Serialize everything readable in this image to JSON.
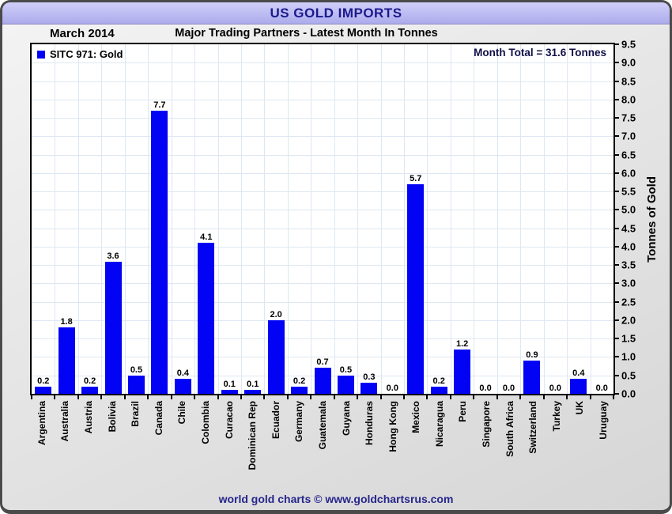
{
  "window": {
    "title": "US GOLD IMPORTS"
  },
  "header": {
    "date": "March 2014",
    "subtitle": "Major Trading Partners - Latest Month In Tonnes"
  },
  "legend": {
    "label": "SITC 971: Gold"
  },
  "annotations": {
    "month_total": "Month Total = 31.6 Tonnes"
  },
  "footer": {
    "text": "world gold charts © www.goldchartsrus.com"
  },
  "colors": {
    "bar_blue": "#0202f5",
    "title_navy": "#1a1a8c",
    "footer_navy": "#26268c",
    "grid_blue": "#dde8f3",
    "titlebar_lavender_top": "#d0cff9",
    "titlebar_lavender_bottom": "#acabec"
  },
  "chart_data": {
    "type": "bar",
    "title": "Major Trading Partners - Latest Month In Tonnes",
    "xlabel": "",
    "ylabel": "Tonnes of Gold",
    "ylim": [
      0,
      9.5
    ],
    "ytick_step": 0.5,
    "grid": true,
    "legend_position": "top-left",
    "value_labels": true,
    "value_label_format": "0.1f",
    "categories": [
      "Argentina",
      "Australia",
      "Austria",
      "Bolivia",
      "Brazil",
      "Canada",
      "Chile",
      "Colombia",
      "Curacao",
      "Dominican Rep",
      "Ecuador",
      "Germany",
      "Guatemala",
      "Guyana",
      "Honduras",
      "Hong Kong",
      "Mexico",
      "Nicaragua",
      "Peru",
      "Singapore",
      "South Africa",
      "Switzerland",
      "Turkey",
      "UK",
      "Uruguay"
    ],
    "values": [
      0.2,
      1.8,
      0.2,
      3.6,
      0.5,
      7.7,
      0.4,
      4.1,
      0.1,
      0.1,
      2.0,
      0.2,
      0.7,
      0.5,
      0.3,
      0.0,
      5.7,
      0.2,
      1.2,
      0.0,
      0.0,
      0.9,
      0.0,
      0.4,
      0.0
    ]
  }
}
